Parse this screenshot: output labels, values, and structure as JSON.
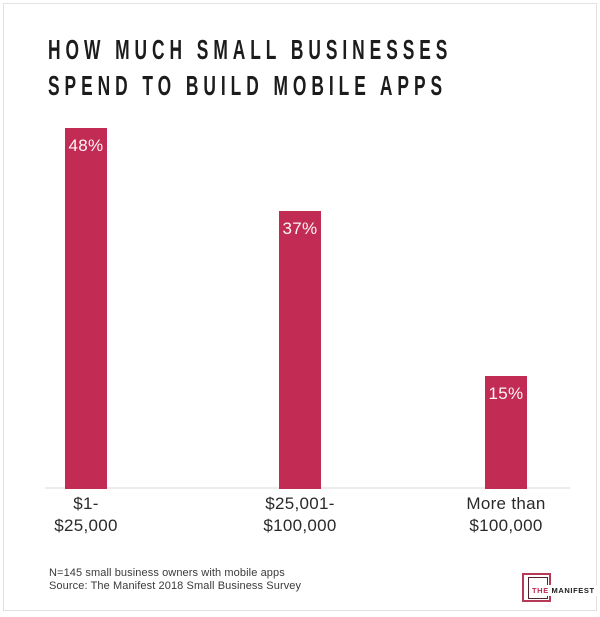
{
  "colors": {
    "accent": "#c22b53",
    "title_text": "#1c1c1e",
    "baseline": "#ececec",
    "logo_square_outer": "#b63a58",
    "logo_square_inner": "#52242f"
  },
  "title": {
    "line1": "HOW MUCH SMALL BUSINESSES",
    "line2": "SPEND TO BUILD MOBILE APPS"
  },
  "chart_data": {
    "type": "bar",
    "title": "How Much Small Businesses Spend to Build Mobile Apps",
    "categories": [
      "$1-$25,000",
      "$25,001-$100,000",
      "More than $100,000"
    ],
    "values": [
      48,
      37,
      15
    ],
    "value_labels": [
      "48%",
      "37%",
      "15%"
    ],
    "unit": "percent of respondents",
    "ylim": [
      0,
      50
    ],
    "grid": false,
    "legend": "none",
    "bar_color": "#c22b53",
    "bars": [
      {
        "category_line1": "$1-",
        "category_line2": "$25,000",
        "value": 48,
        "value_label": "48%"
      },
      {
        "category_line1": "$25,001-",
        "category_line2": "$100,000",
        "value": 37,
        "value_label": "37%"
      },
      {
        "category_line1": "More than",
        "category_line2": "$100,000",
        "value": 15,
        "value_label": "15%"
      }
    ]
  },
  "footer": {
    "line1": "N=145 small business owners with mobile apps",
    "line2": "Source: The Manifest 2018 Small Business Survey"
  },
  "logo": {
    "the": "THE",
    "manifest": "MANIFEST"
  }
}
